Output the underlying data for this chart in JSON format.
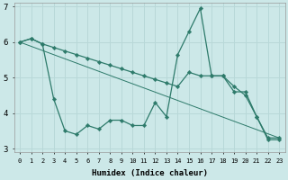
{
  "xlabel": "Humidex (Indice chaleur)",
  "background_color": "#cce8e8",
  "line_color": "#2d7a6a",
  "grid_color": "#b8d8d8",
  "xlim": [
    -0.5,
    23.5
  ],
  "ylim": [
    2.9,
    7.1
  ],
  "yticks": [
    3,
    4,
    5,
    6,
    7
  ],
  "xticks": [
    0,
    1,
    2,
    3,
    4,
    5,
    6,
    7,
    8,
    9,
    10,
    11,
    12,
    13,
    14,
    15,
    16,
    17,
    18,
    19,
    20,
    21,
    22,
    23
  ],
  "series1_x": [
    0,
    1,
    2,
    3,
    4,
    5,
    6,
    7,
    8,
    9,
    10,
    11,
    12,
    13,
    14,
    15,
    16,
    17,
    18,
    19,
    20,
    21,
    22,
    23
  ],
  "series1_y": [
    6.0,
    6.1,
    5.95,
    4.4,
    3.5,
    3.4,
    3.65,
    3.55,
    3.8,
    3.8,
    3.65,
    3.65,
    4.3,
    3.9,
    5.65,
    6.3,
    6.95,
    5.05,
    5.05,
    4.75,
    4.5,
    3.9,
    3.25,
    3.25
  ],
  "series2_x": [
    0,
    1,
    2,
    3,
    4,
    5,
    6,
    7,
    8,
    9,
    10,
    11,
    12,
    13,
    14,
    15,
    16,
    17,
    18,
    19,
    20,
    21,
    22,
    23
  ],
  "series2_y": [
    6.0,
    6.1,
    5.95,
    5.85,
    5.75,
    5.65,
    5.55,
    5.45,
    5.35,
    5.25,
    5.15,
    5.05,
    4.95,
    4.85,
    4.75,
    5.15,
    5.05,
    5.05,
    5.05,
    4.6,
    4.6,
    3.9,
    3.3,
    3.3
  ],
  "series3_x": [
    0,
    23
  ],
  "series3_y": [
    6.0,
    3.3
  ]
}
